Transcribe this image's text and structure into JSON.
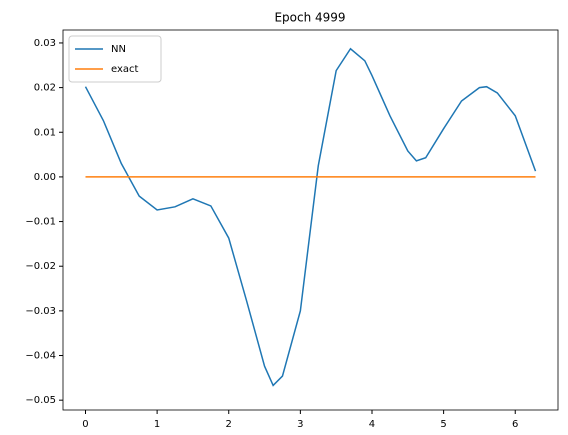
{
  "chart_data": {
    "type": "line",
    "title": "Epoch 4999",
    "x": [
      0,
      0.25,
      0.5,
      0.75,
      1.0,
      1.25,
      1.5,
      1.75,
      2.0,
      2.25,
      2.5,
      2.62,
      2.75,
      3.0,
      3.25,
      3.5,
      3.7,
      3.9,
      4.0,
      4.25,
      4.5,
      4.62,
      4.75,
      5.0,
      5.25,
      5.5,
      5.6,
      5.75,
      6.0,
      6.283
    ],
    "series": [
      {
        "name": "NN",
        "color": "#1f77b4",
        "values": [
          0.0202,
          0.0126,
          0.003,
          -0.0043,
          -0.0074,
          -0.0067,
          -0.0049,
          -0.0065,
          -0.0137,
          -0.0278,
          -0.0424,
          -0.0467,
          -0.0446,
          -0.03,
          0.0025,
          0.0238,
          0.0287,
          0.026,
          0.0227,
          0.0137,
          0.0058,
          0.0036,
          0.0043,
          0.0108,
          0.017,
          0.02,
          0.0202,
          0.0188,
          0.0137,
          0.0013
        ]
      },
      {
        "name": "exact",
        "color": "#ff7f0e",
        "values": [
          0,
          0,
          0,
          0,
          0,
          0,
          0,
          0,
          0,
          0,
          0,
          0,
          0,
          0,
          0,
          0,
          0,
          0,
          0,
          0,
          0,
          0,
          0,
          0,
          0,
          0,
          0,
          0,
          0,
          0
        ]
      }
    ],
    "xlim": [
      -0.314,
      6.597
    ],
    "ylim": [
      -0.0522,
      0.0329
    ],
    "xticks": [
      0,
      1,
      2,
      3,
      4,
      5,
      6
    ],
    "yticks": [
      0.03,
      0.02,
      0.01,
      {
        "value": 0,
        "label": "0.00"
      },
      {
        "value": -0.01,
        "label": "−0.01"
      },
      {
        "value": -0.02,
        "label": "−0.02"
      },
      {
        "value": -0.03,
        "label": "−0.03"
      },
      {
        "value": -0.04,
        "label": "−0.04"
      },
      {
        "value": -0.05,
        "label": "−0.05"
      }
    ],
    "legend": "upper left",
    "grid": false
  }
}
